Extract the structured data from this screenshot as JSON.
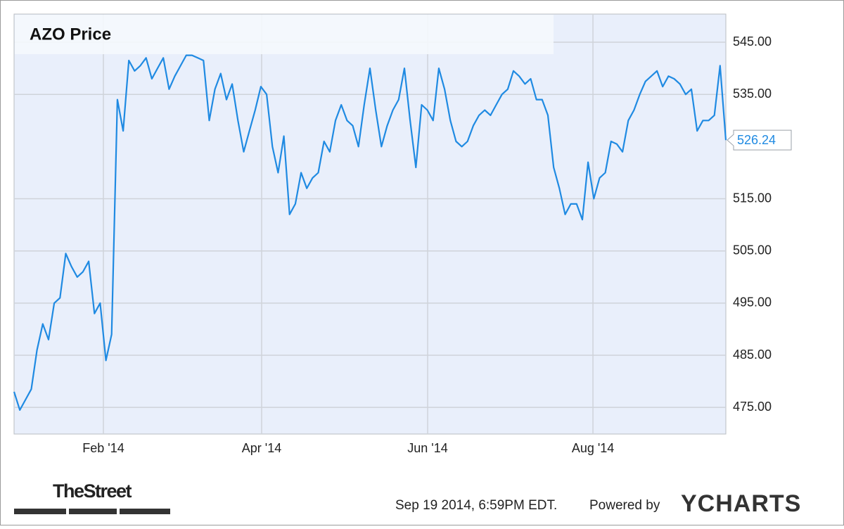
{
  "chart_data": {
    "type": "line",
    "title": "AZO Price",
    "values": [
      478,
      474.5,
      476.5,
      478.5,
      486,
      491,
      488,
      495,
      496,
      504.5,
      502,
      500,
      501,
      503,
      493,
      495,
      484,
      489,
      534,
      528,
      541.5,
      539.5,
      540.5,
      542,
      538,
      540,
      542,
      536,
      538.5,
      540.5,
      542.5,
      542.5,
      542,
      541.5,
      530,
      536,
      539,
      534,
      537,
      530,
      524,
      528,
      532,
      536.5,
      535,
      525,
      520,
      527,
      512,
      514,
      520,
      517,
      519,
      520,
      526,
      524,
      530,
      533,
      530,
      529,
      525,
      533,
      540,
      532,
      525,
      529,
      532,
      534,
      540,
      530,
      521,
      533,
      532,
      530,
      540,
      536,
      530,
      526,
      525,
      526,
      529,
      531,
      532,
      531,
      533,
      535,
      536,
      539.5,
      538.5,
      537,
      538,
      534,
      534,
      531,
      521,
      517,
      512,
      514,
      514,
      511,
      522,
      515,
      519,
      520,
      526,
      525.5,
      524,
      530,
      532,
      535,
      537.5,
      538.5,
      539.5,
      536.5,
      538.5,
      538,
      537,
      535,
      536,
      528,
      530,
      530,
      531,
      540.5,
      526.24
    ],
    "color": "#1f8ae2",
    "xlim": [
      0,
      124
    ],
    "xticks": [
      {
        "value": 15.56,
        "label": "Feb '14"
      },
      {
        "value": 43.13,
        "label": "Apr '14"
      },
      {
        "value": 72.05,
        "label": "Jun '14"
      },
      {
        "value": 100.85,
        "label": "Aug '14"
      }
    ],
    "ylim": [
      469.9,
      550.4
    ],
    "yticks": [
      {
        "value": 475,
        "label": "475.00"
      },
      {
        "value": 485,
        "label": "485.00"
      },
      {
        "value": 495,
        "label": "495.00"
      },
      {
        "value": 505,
        "label": "505.00"
      },
      {
        "value": 515,
        "label": "515.00"
      },
      {
        "value": 535,
        "label": "535.00"
      },
      {
        "value": 545,
        "label": "545.00"
      }
    ],
    "grid": true,
    "source_logo": "TheStreet",
    "timestamp": "Sep 19 2014, 6:59PM EDT.",
    "powered_by": "Powered by",
    "brand": "YCHARTS"
  }
}
